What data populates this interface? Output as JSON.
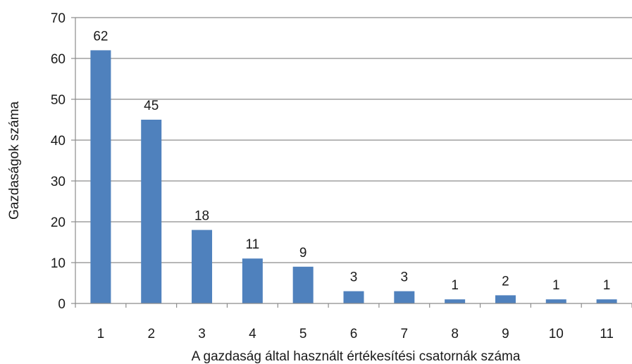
{
  "chart_data": {
    "type": "bar",
    "categories": [
      "1",
      "2",
      "3",
      "4",
      "5",
      "6",
      "7",
      "8",
      "9",
      "10",
      "11"
    ],
    "values": [
      62,
      45,
      18,
      11,
      9,
      3,
      3,
      1,
      2,
      1,
      1
    ],
    "xlabel": "A gazdaság által használt értékesítési csatornák száma",
    "ylabel": "Gazdaságok száma",
    "ylim": [
      0,
      70
    ],
    "yticks": [
      0,
      10,
      20,
      30,
      40,
      50,
      60,
      70
    ],
    "grid": true,
    "legend": "none",
    "bar_color": "#4f81bd",
    "grid_color": "#8c8c8c"
  }
}
